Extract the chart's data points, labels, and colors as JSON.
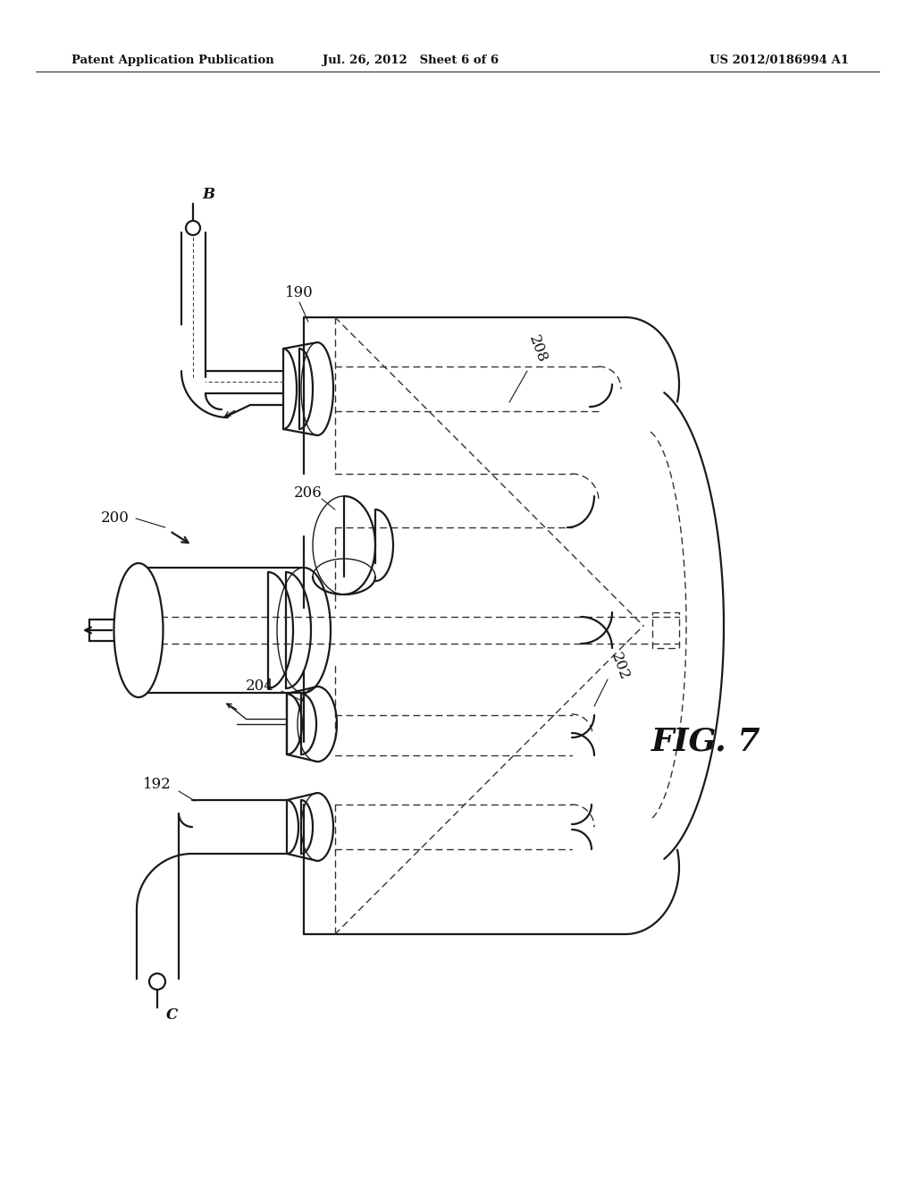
{
  "bg_color": "#ffffff",
  "header_left": "Patent Application Publication",
  "header_mid": "Jul. 26, 2012   Sheet 6 of 6",
  "header_right": "US 2012/0186994 A1",
  "fig_label": "FIG. 7",
  "line_color": "#1a1a1a",
  "dashed_color": "#333333",
  "lw_main": 1.6,
  "lw_thin": 1.0,
  "lw_label": 0.8
}
